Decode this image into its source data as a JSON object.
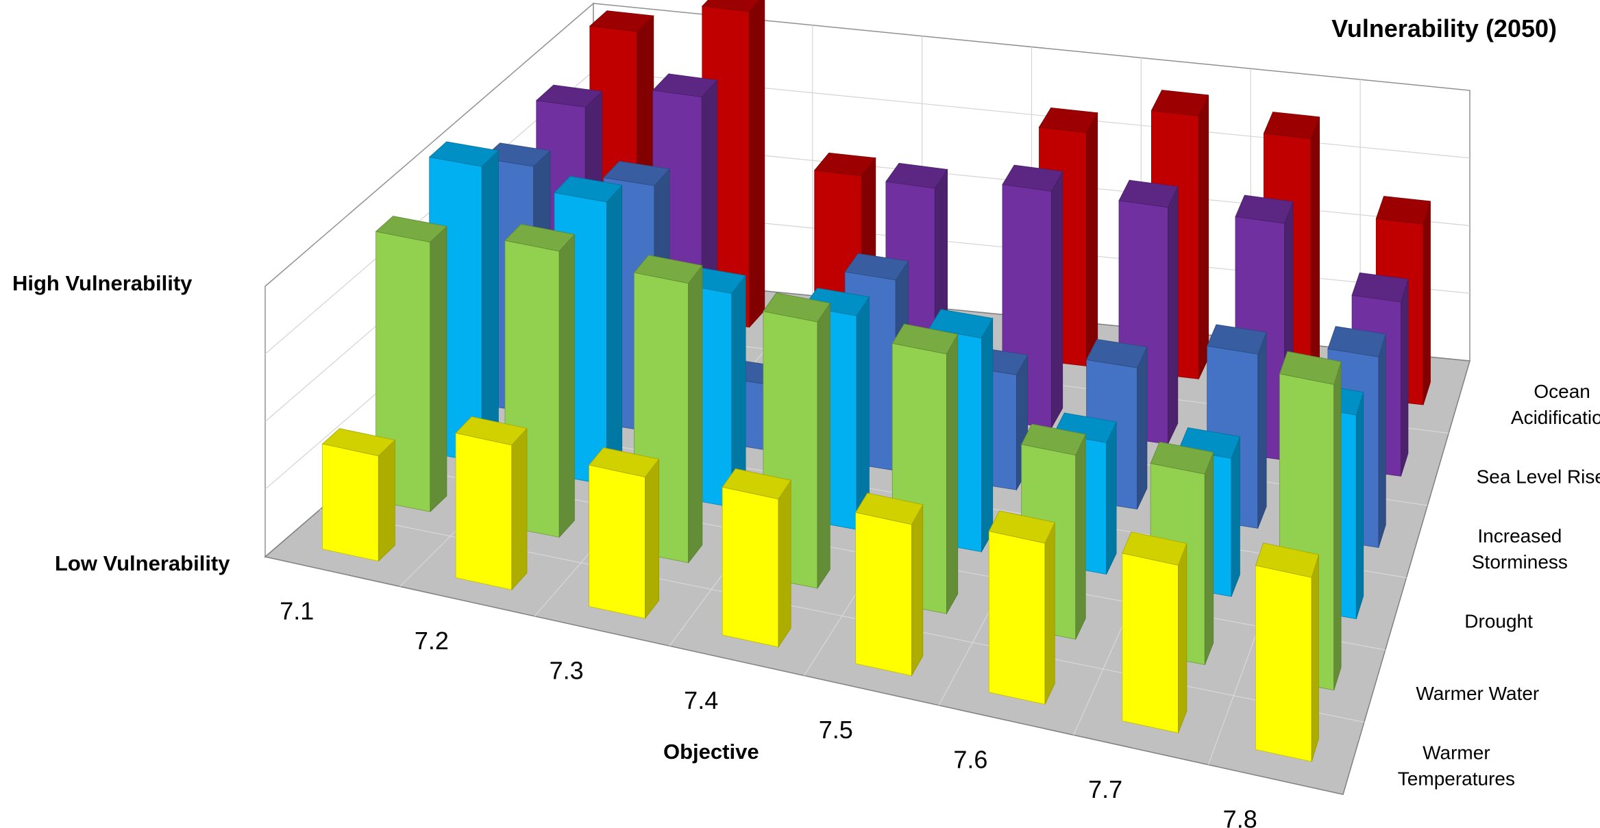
{
  "chart_data": {
    "type": "bar",
    "subtype": "3d-column",
    "title": "Vulnerability (2050)",
    "xlabel": "Objective",
    "ylabel_high": "High Vulnerability",
    "ylabel_low": "Low Vulnerability",
    "ylim": [
      0,
      10
    ],
    "grid": true,
    "categories": [
      "7.1",
      "7.2",
      "7.3",
      "7.4",
      "7.5",
      "7.6",
      "7.7",
      "7.8"
    ],
    "series": [
      {
        "name": "Warmer Temperatures",
        "color": "#ffff00",
        "values": [
          3.2,
          4.4,
          4.3,
          4.5,
          4.6,
          4.9,
          5.1,
          5.6
        ]
      },
      {
        "name": "Warmer Water",
        "color": "#92d050",
        "values": [
          8.2,
          8.7,
          8.5,
          8.1,
          7.9,
          5.6,
          5.8,
          9.3
        ]
      },
      {
        "name": "Drought",
        "color": "#00b0f0",
        "values": [
          9.0,
          8.6,
          6.5,
          6.5,
          6.5,
          4.0,
          4.2,
          6.2
        ]
      },
      {
        "name": "Increased Storminess",
        "color": "#4472c4",
        "values": [
          7.5,
          7.5,
          2.0,
          5.8,
          3.5,
          4.3,
          5.3,
          5.8
        ]
      },
      {
        "name": "Sea Level Rise",
        "color": "#7030a0",
        "values": [
          7.8,
          8.6,
          0,
          6.8,
          7.2,
          7.2,
          7.2,
          5.3
        ]
      },
      {
        "name": "Ocean Acidification",
        "color": "#c00000",
        "values": [
          8.6,
          9.6,
          5.0,
          0,
          7.1,
          8.0,
          7.7,
          5.5
        ]
      }
    ]
  }
}
